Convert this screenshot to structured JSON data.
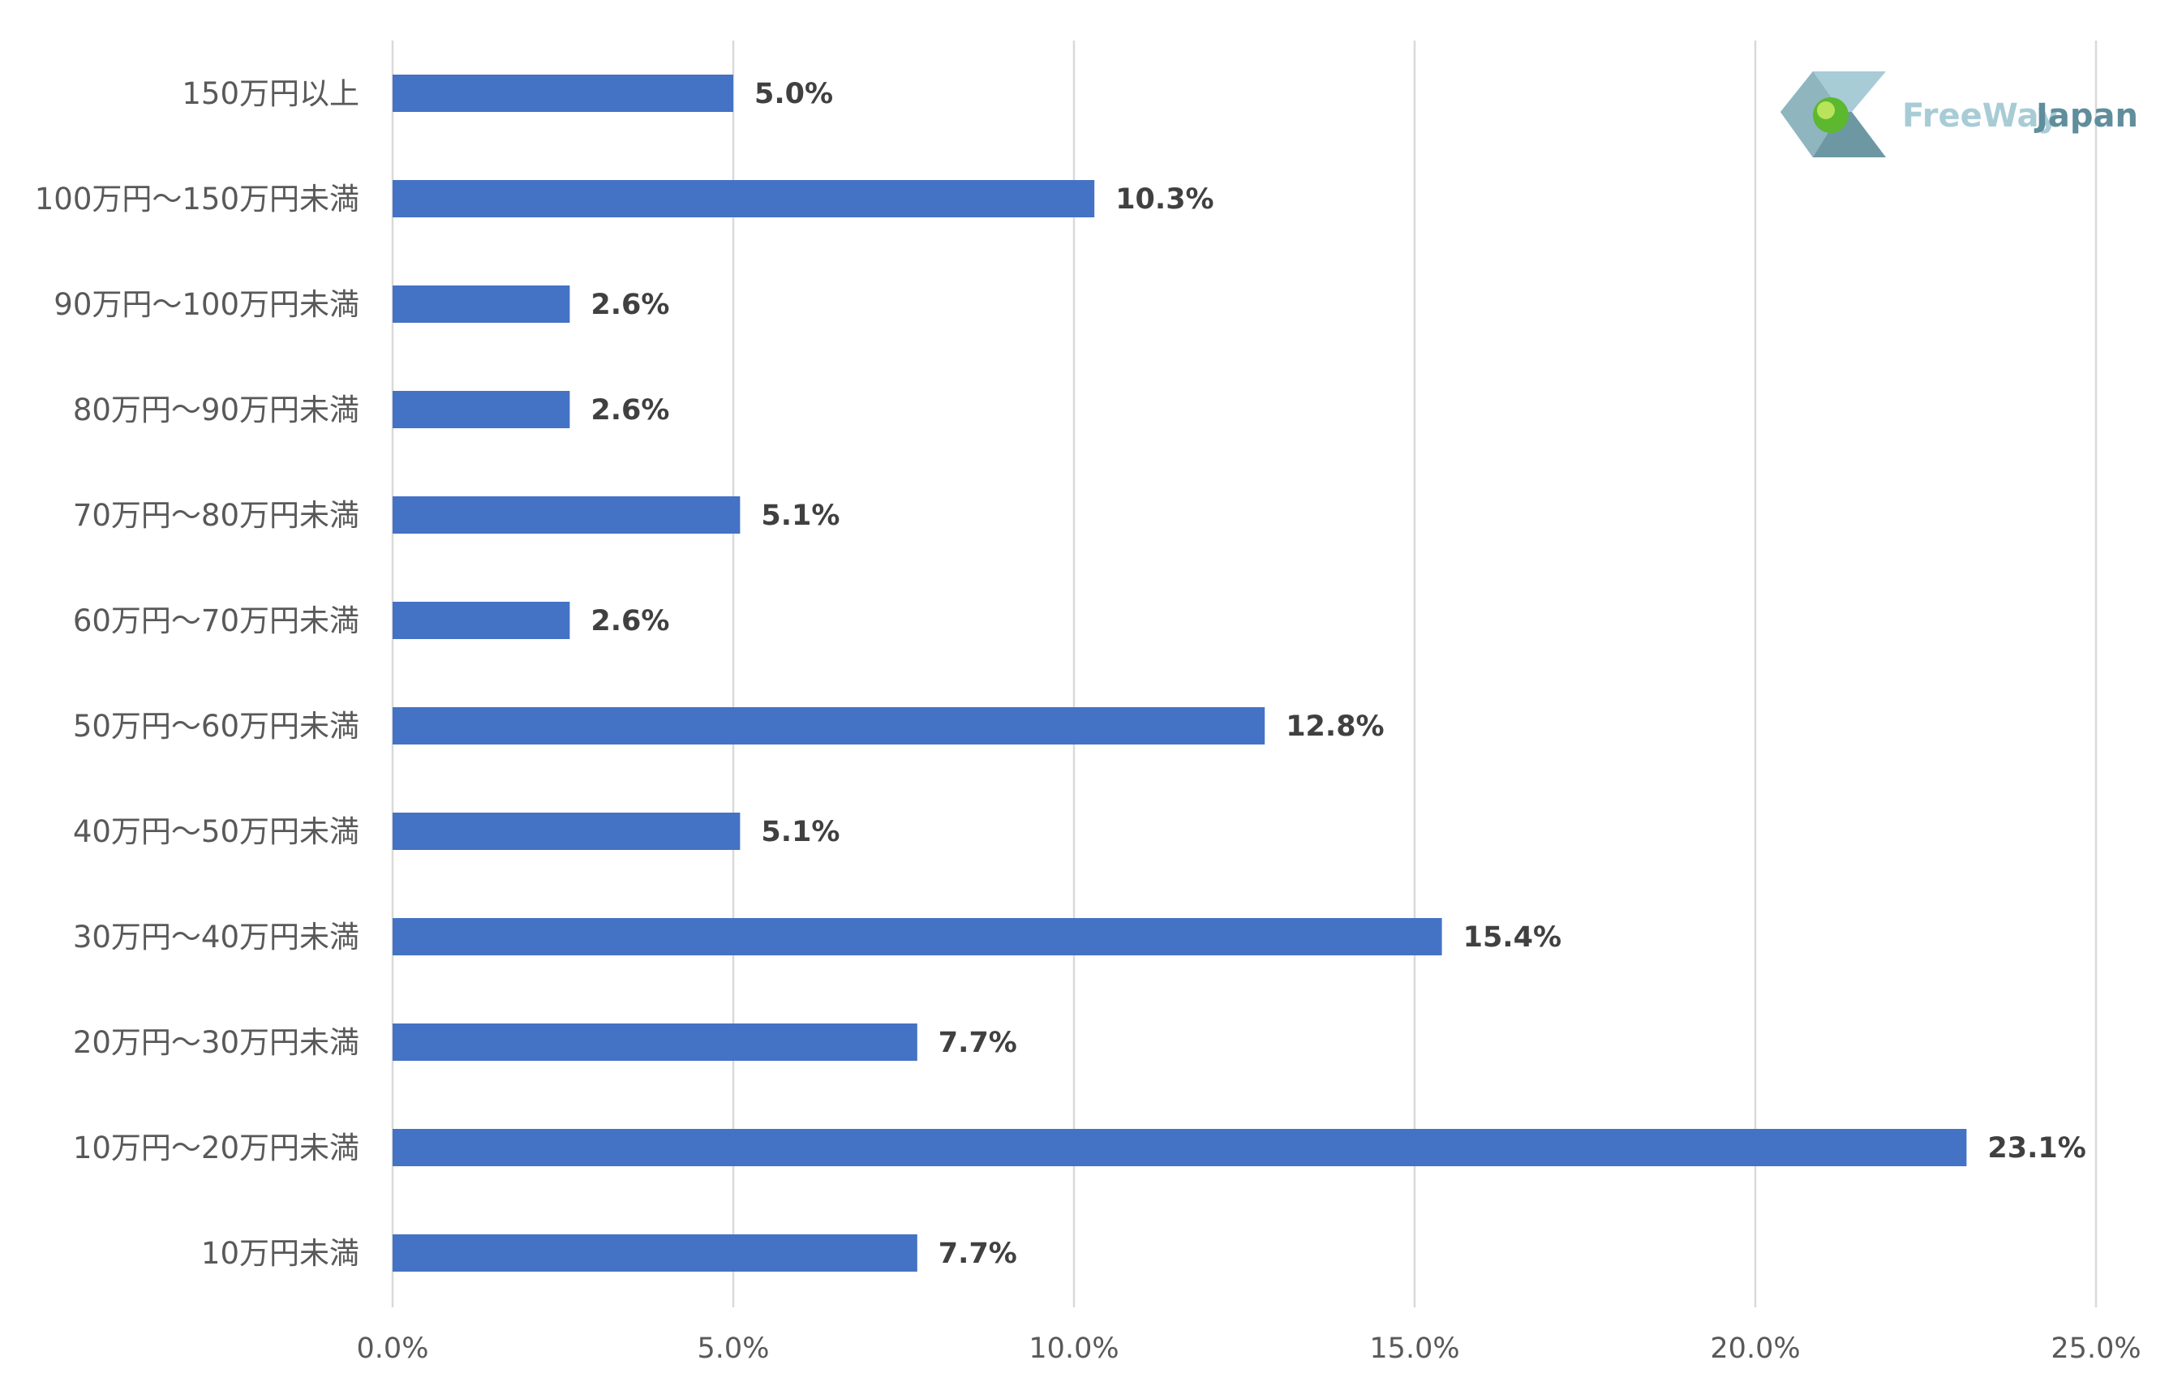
{
  "chart_data": {
    "type": "bar",
    "orientation": "horizontal",
    "categories": [
      "150万円以上",
      "100万円～150万円未満",
      "90万円～100万円未満",
      "80万円～90万円未満",
      "70万円～80万円未満",
      "60万円～70万円未満",
      "50万円～60万円未満",
      "40万円～50万円未満",
      "30万円～40万円未満",
      "20万円～30万円未満",
      "10万円～20万円未満",
      "10万円未満"
    ],
    "values": [
      5.0,
      10.3,
      2.6,
      2.6,
      5.1,
      2.6,
      12.8,
      5.1,
      15.4,
      7.7,
      23.1,
      7.7
    ],
    "value_labels": [
      "5.0%",
      "10.3%",
      "2.6%",
      "2.6%",
      "5.1%",
      "2.6%",
      "12.8%",
      "5.1%",
      "15.4%",
      "7.7%",
      "23.1%",
      "7.7%"
    ],
    "xlim": [
      0,
      25
    ],
    "xticks": [
      0,
      5,
      10,
      15,
      20,
      25
    ],
    "xtick_labels": [
      "0.0%",
      "5.0%",
      "10.0%",
      "15.0%",
      "20.0%",
      "25.0%"
    ],
    "title": "",
    "xlabel": "",
    "ylabel": "",
    "grid": "vertical",
    "bar_color": "#4472c4",
    "legend": "none"
  },
  "logo": {
    "text_part1": "FreeWay",
    "text_part2": "Japan",
    "icon": "freewayjapan-logo-icon"
  }
}
